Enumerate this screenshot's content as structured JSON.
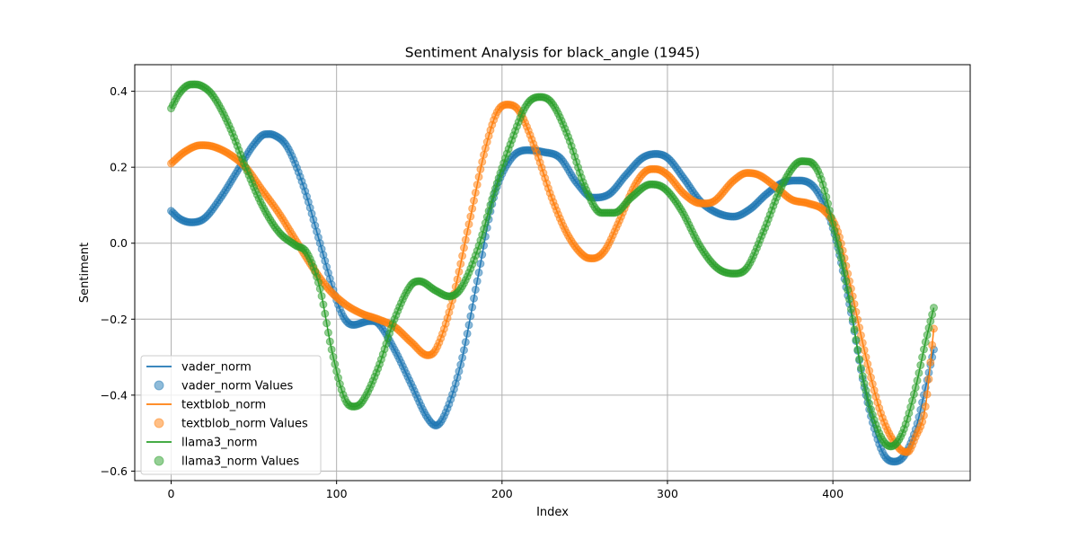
{
  "chart_data": {
    "type": "line",
    "title": "Sentiment Analysis for black_angle (1945)",
    "xlabel": "Index",
    "ylabel": "Sentiment",
    "xlim": [
      -22,
      483
    ],
    "ylim": [
      -0.625,
      0.47
    ],
    "xticks": [
      0,
      100,
      200,
      300,
      400
    ],
    "yticks": [
      -0.6,
      -0.4,
      -0.2,
      0.0,
      0.2,
      0.4
    ],
    "grid": true,
    "legend_position": "lower-left",
    "x_count": 462,
    "series": [
      {
        "name": "vader_norm",
        "scatter_name": "vader_norm Values",
        "color": "#1f77b4",
        "keypoints": [
          [
            0,
            0.085
          ],
          [
            5,
            0.065
          ],
          [
            12,
            0.055
          ],
          [
            20,
            0.065
          ],
          [
            30,
            0.12
          ],
          [
            40,
            0.19
          ],
          [
            50,
            0.26
          ],
          [
            57,
            0.287
          ],
          [
            62,
            0.285
          ],
          [
            70,
            0.255
          ],
          [
            80,
            0.15
          ],
          [
            90,
            0.0
          ],
          [
            100,
            -0.15
          ],
          [
            105,
            -0.2
          ],
          [
            110,
            -0.215
          ],
          [
            120,
            -0.205
          ],
          [
            125,
            -0.21
          ],
          [
            135,
            -0.28
          ],
          [
            145,
            -0.37
          ],
          [
            155,
            -0.46
          ],
          [
            160,
            -0.48
          ],
          [
            165,
            -0.455
          ],
          [
            175,
            -0.32
          ],
          [
            185,
            -0.1
          ],
          [
            195,
            0.12
          ],
          [
            205,
            0.22
          ],
          [
            215,
            0.245
          ],
          [
            225,
            0.24
          ],
          [
            235,
            0.225
          ],
          [
            245,
            0.16
          ],
          [
            255,
            0.12
          ],
          [
            265,
            0.13
          ],
          [
            275,
            0.18
          ],
          [
            285,
            0.225
          ],
          [
            293,
            0.235
          ],
          [
            300,
            0.225
          ],
          [
            310,
            0.17
          ],
          [
            320,
            0.11
          ],
          [
            330,
            0.08
          ],
          [
            340,
            0.07
          ],
          [
            350,
            0.09
          ],
          [
            360,
            0.13
          ],
          [
            370,
            0.16
          ],
          [
            380,
            0.165
          ],
          [
            390,
            0.14
          ],
          [
            400,
            0.04
          ],
          [
            410,
            -0.16
          ],
          [
            420,
            -0.4
          ],
          [
            430,
            -0.55
          ],
          [
            437,
            -0.575
          ],
          [
            443,
            -0.56
          ],
          [
            450,
            -0.49
          ],
          [
            456,
            -0.38
          ],
          [
            461,
            -0.28
          ]
        ]
      },
      {
        "name": "textblob_norm",
        "scatter_name": "textblob_norm Values",
        "color": "#ff7f0e",
        "keypoints": [
          [
            0,
            0.21
          ],
          [
            8,
            0.24
          ],
          [
            18,
            0.258
          ],
          [
            25,
            0.255
          ],
          [
            35,
            0.235
          ],
          [
            45,
            0.2
          ],
          [
            55,
            0.14
          ],
          [
            65,
            0.08
          ],
          [
            75,
            0.01
          ],
          [
            85,
            -0.06
          ],
          [
            95,
            -0.12
          ],
          [
            105,
            -0.16
          ],
          [
            115,
            -0.185
          ],
          [
            125,
            -0.2
          ],
          [
            135,
            -0.22
          ],
          [
            145,
            -0.26
          ],
          [
            155,
            -0.295
          ],
          [
            160,
            -0.28
          ],
          [
            170,
            -0.15
          ],
          [
            180,
            0.05
          ],
          [
            190,
            0.25
          ],
          [
            197,
            0.345
          ],
          [
            203,
            0.365
          ],
          [
            210,
            0.35
          ],
          [
            220,
            0.25
          ],
          [
            230,
            0.12
          ],
          [
            240,
            0.02
          ],
          [
            250,
            -0.035
          ],
          [
            255,
            -0.04
          ],
          [
            262,
            -0.02
          ],
          [
            270,
            0.05
          ],
          [
            280,
            0.15
          ],
          [
            287,
            0.19
          ],
          [
            293,
            0.195
          ],
          [
            300,
            0.18
          ],
          [
            310,
            0.13
          ],
          [
            320,
            0.105
          ],
          [
            328,
            0.11
          ],
          [
            340,
            0.165
          ],
          [
            348,
            0.185
          ],
          [
            355,
            0.18
          ],
          [
            365,
            0.15
          ],
          [
            375,
            0.115
          ],
          [
            385,
            0.105
          ],
          [
            395,
            0.085
          ],
          [
            403,
            0.03
          ],
          [
            410,
            -0.1
          ],
          [
            420,
            -0.3
          ],
          [
            430,
            -0.46
          ],
          [
            440,
            -0.54
          ],
          [
            445,
            -0.55
          ],
          [
            450,
            -0.51
          ],
          [
            456,
            -0.43
          ],
          [
            461,
            -0.225
          ]
        ]
      },
      {
        "name": "llama3_norm",
        "scatter_name": "llama3_norm Values",
        "color": "#2ca02c",
        "keypoints": [
          [
            0,
            0.355
          ],
          [
            5,
            0.395
          ],
          [
            12,
            0.418
          ],
          [
            18,
            0.415
          ],
          [
            25,
            0.39
          ],
          [
            35,
            0.31
          ],
          [
            45,
            0.2
          ],
          [
            55,
            0.1
          ],
          [
            65,
            0.03
          ],
          [
            75,
            -0.005
          ],
          [
            82,
            -0.025
          ],
          [
            90,
            -0.12
          ],
          [
            97,
            -0.28
          ],
          [
            105,
            -0.41
          ],
          [
            110,
            -0.43
          ],
          [
            115,
            -0.42
          ],
          [
            125,
            -0.33
          ],
          [
            135,
            -0.2
          ],
          [
            145,
            -0.11
          ],
          [
            150,
            -0.1
          ],
          [
            160,
            -0.125
          ],
          [
            168,
            -0.14
          ],
          [
            175,
            -0.12
          ],
          [
            185,
            -0.02
          ],
          [
            195,
            0.13
          ],
          [
            205,
            0.26
          ],
          [
            215,
            0.365
          ],
          [
            223,
            0.385
          ],
          [
            230,
            0.37
          ],
          [
            240,
            0.28
          ],
          [
            250,
            0.15
          ],
          [
            260,
            0.08
          ],
          [
            268,
            0.08
          ],
          [
            278,
            0.12
          ],
          [
            290,
            0.155
          ],
          [
            298,
            0.145
          ],
          [
            308,
            0.09
          ],
          [
            320,
            -0.01
          ],
          [
            330,
            -0.065
          ],
          [
            340,
            -0.08
          ],
          [
            348,
            -0.065
          ],
          [
            358,
            0.03
          ],
          [
            368,
            0.14
          ],
          [
            378,
            0.21
          ],
          [
            385,
            0.215
          ],
          [
            392,
            0.18
          ],
          [
            400,
            0.05
          ],
          [
            408,
            -0.1
          ],
          [
            418,
            -0.35
          ],
          [
            428,
            -0.5
          ],
          [
            435,
            -0.535
          ],
          [
            442,
            -0.5
          ],
          [
            450,
            -0.38
          ],
          [
            456,
            -0.26
          ],
          [
            461,
            -0.17
          ]
        ]
      }
    ]
  }
}
